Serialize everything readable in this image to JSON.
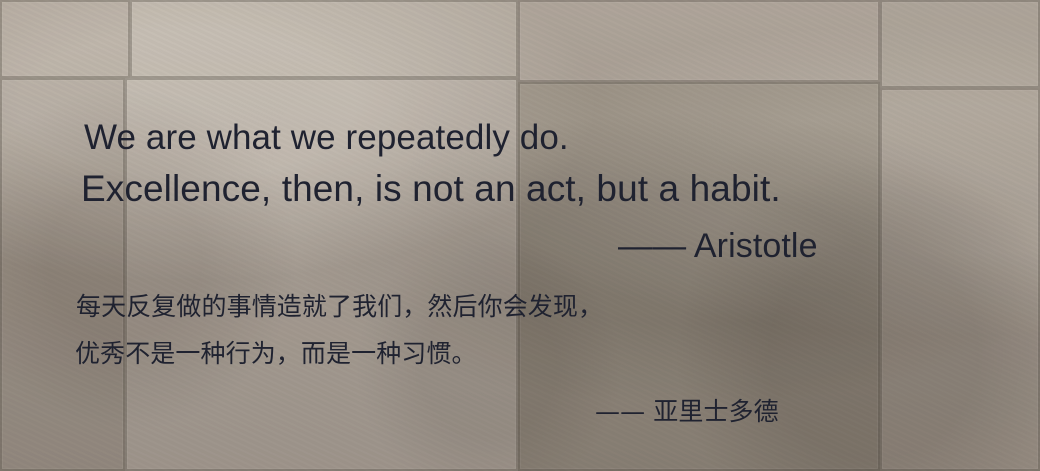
{
  "quote": {
    "english": {
      "line1": "We are what we repeatedly do.",
      "line2": "Excellence, then, is not an act, but a habit.",
      "author": "—— Aristotle"
    },
    "chinese": {
      "line1": "每天反复做的事情造就了我们，然后你会发现，",
      "line2": "优秀不是一种行为，而是一种习惯。",
      "author": "—— 亚里士多德"
    }
  }
}
